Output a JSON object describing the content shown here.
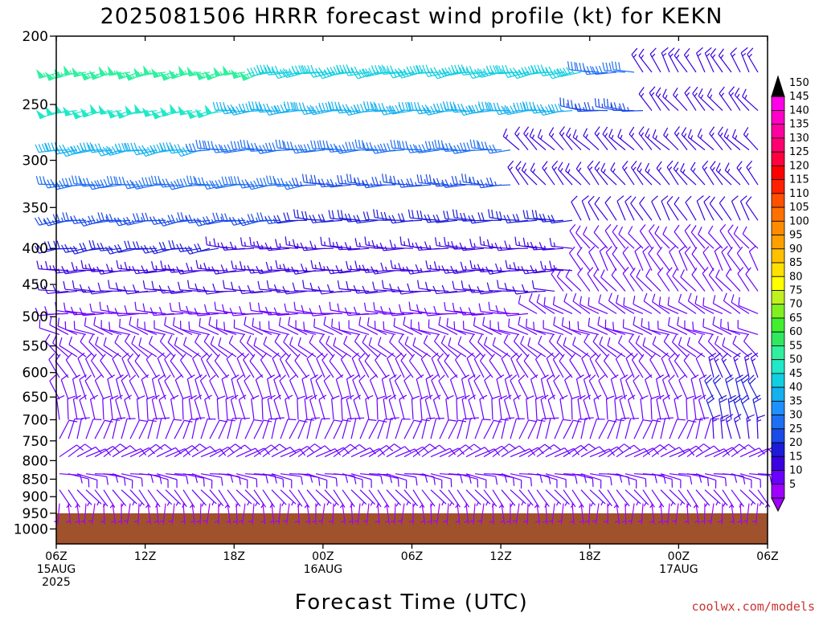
{
  "chart_data": {
    "type": "wind-barb time-height",
    "title": "2025081506 HRRR forecast wind profile (kt) for KEKN",
    "xlabel": "Forecast Time (UTC)",
    "ylabel": "",
    "x_ticks": [
      {
        "hour": 0,
        "lines": [
          "06Z",
          "15AUG",
          "2025"
        ]
      },
      {
        "hour": 6,
        "lines": [
          "12Z"
        ]
      },
      {
        "hour": 12,
        "lines": [
          "18Z"
        ]
      },
      {
        "hour": 18,
        "lines": [
          "00Z",
          "16AUG"
        ]
      },
      {
        "hour": 24,
        "lines": [
          "06Z"
        ]
      },
      {
        "hour": 30,
        "lines": [
          "12Z"
        ]
      },
      {
        "hour": 36,
        "lines": [
          "18Z"
        ]
      },
      {
        "hour": 42,
        "lines": [
          "00Z",
          "17AUG"
        ]
      },
      {
        "hour": 48,
        "lines": [
          "06Z"
        ]
      }
    ],
    "xlim_hours": [
      0,
      48
    ],
    "y_ticks": [
      200,
      250,
      300,
      350,
      400,
      450,
      500,
      550,
      600,
      650,
      700,
      750,
      800,
      850,
      900,
      950,
      1000
    ],
    "ylim_hpa": [
      200,
      1050
    ],
    "y_scale": "log-pressure",
    "ground_level_hpa": 950,
    "ground_color": "#a0522d",
    "colorbar": {
      "values": [
        5,
        10,
        15,
        20,
        25,
        30,
        35,
        40,
        45,
        50,
        55,
        60,
        65,
        70,
        75,
        80,
        85,
        90,
        95,
        100,
        105,
        110,
        115,
        120,
        125,
        130,
        135,
        140,
        145,
        150
      ],
      "colors": [
        "#a000ff",
        "#6a00ff",
        "#3a00e0",
        "#1c1cd8",
        "#1a4be8",
        "#1e6ff2",
        "#1e90ff",
        "#14b0f0",
        "#10cfe0",
        "#20e8c8",
        "#30f0a0",
        "#30e860",
        "#40f030",
        "#80f020",
        "#c0f020",
        "#ffff00",
        "#ffe000",
        "#ffc000",
        "#ffa000",
        "#ff8c00",
        "#ff7000",
        "#ff5000",
        "#ff2000",
        "#ff0000",
        "#ff0040",
        "#ff0070",
        "#ff00a0",
        "#ff00c8",
        "#ff00e8",
        "#000000"
      ]
    },
    "wind_profiles": [
      {
        "level_hpa": 225,
        "segments": [
          {
            "from_hour": 0,
            "to_hour": 14,
            "speed_kt": 55,
            "dir_deg": 255
          },
          {
            "from_hour": 14,
            "to_hour": 36,
            "speed_kt": 45,
            "dir_deg": 260
          },
          {
            "from_hour": 36,
            "to_hour": 39,
            "speed_kt": 30,
            "dir_deg": 270
          },
          {
            "from_hour": 39,
            "to_hour": 48,
            "speed_kt": 15,
            "dir_deg": 330
          }
        ]
      },
      {
        "level_hpa": 255,
        "segments": [
          {
            "from_hour": 0,
            "to_hour": 12,
            "speed_kt": 50,
            "dir_deg": 255
          },
          {
            "from_hour": 12,
            "to_hour": 35,
            "speed_kt": 40,
            "dir_deg": 265
          },
          {
            "from_hour": 35,
            "to_hour": 40,
            "speed_kt": 25,
            "dir_deg": 275
          },
          {
            "from_hour": 40,
            "to_hour": 48,
            "speed_kt": 15,
            "dir_deg": 320
          }
        ]
      },
      {
        "level_hpa": 290,
        "segments": [
          {
            "from_hour": 0,
            "to_hour": 10,
            "speed_kt": 40,
            "dir_deg": 260
          },
          {
            "from_hour": 10,
            "to_hour": 31,
            "speed_kt": 30,
            "dir_deg": 268
          },
          {
            "from_hour": 31,
            "to_hour": 48,
            "speed_kt": 15,
            "dir_deg": 315
          }
        ]
      },
      {
        "level_hpa": 325,
        "segments": [
          {
            "from_hour": 0,
            "to_hour": 17,
            "speed_kt": 30,
            "dir_deg": 265
          },
          {
            "from_hour": 17,
            "to_hour": 31,
            "speed_kt": 25,
            "dir_deg": 270
          },
          {
            "from_hour": 31,
            "to_hour": 48,
            "speed_kt": 15,
            "dir_deg": 320
          }
        ]
      },
      {
        "level_hpa": 365,
        "segments": [
          {
            "from_hour": 0,
            "to_hour": 16,
            "speed_kt": 25,
            "dir_deg": 262
          },
          {
            "from_hour": 16,
            "to_hour": 35,
            "speed_kt": 20,
            "dir_deg": 270
          },
          {
            "from_hour": 35,
            "to_hour": 48,
            "speed_kt": 12,
            "dir_deg": 330
          }
        ]
      },
      {
        "level_hpa": 400,
        "segments": [
          {
            "from_hour": 0,
            "to_hour": 11,
            "speed_kt": 20,
            "dir_deg": 262
          },
          {
            "from_hour": 11,
            "to_hour": 35,
            "speed_kt": 15,
            "dir_deg": 272
          },
          {
            "from_hour": 35,
            "to_hour": 48,
            "speed_kt": 10,
            "dir_deg": 320
          }
        ]
      },
      {
        "level_hpa": 430,
        "segments": [
          {
            "from_hour": 0,
            "to_hour": 35,
            "speed_kt": 15,
            "dir_deg": 268
          },
          {
            "from_hour": 35,
            "to_hour": 48,
            "speed_kt": 10,
            "dir_deg": 330
          }
        ]
      },
      {
        "level_hpa": 460,
        "segments": [
          {
            "from_hour": 0,
            "to_hour": 34,
            "speed_kt": 12,
            "dir_deg": 270
          },
          {
            "from_hour": 34,
            "to_hour": 48,
            "speed_kt": 8,
            "dir_deg": 320
          }
        ]
      },
      {
        "level_hpa": 495,
        "segments": [
          {
            "from_hour": 0,
            "to_hour": 32,
            "speed_kt": 10,
            "dir_deg": 272
          },
          {
            "from_hour": 32,
            "to_hour": 48,
            "speed_kt": 8,
            "dir_deg": 300
          }
        ]
      },
      {
        "level_hpa": 530,
        "segments": [
          {
            "from_hour": 0,
            "to_hour": 48,
            "speed_kt": 8,
            "dir_deg": 290
          }
        ]
      },
      {
        "level_hpa": 570,
        "segments": [
          {
            "from_hour": 0,
            "to_hour": 48,
            "speed_kt": 8,
            "dir_deg": 310
          }
        ]
      },
      {
        "level_hpa": 610,
        "segments": [
          {
            "from_hour": 0,
            "to_hour": 44,
            "speed_kt": 8,
            "dir_deg": 330
          },
          {
            "from_hour": 44,
            "to_hour": 48,
            "speed_kt": 15,
            "dir_deg": 340
          }
        ]
      },
      {
        "level_hpa": 655,
        "segments": [
          {
            "from_hour": 0,
            "to_hour": 44,
            "speed_kt": 8,
            "dir_deg": 340
          },
          {
            "from_hour": 44,
            "to_hour": 48,
            "speed_kt": 20,
            "dir_deg": 340
          }
        ]
      },
      {
        "level_hpa": 700,
        "segments": [
          {
            "from_hour": 0,
            "to_hour": 44,
            "speed_kt": 8,
            "dir_deg": 350
          },
          {
            "from_hour": 44,
            "to_hour": 48,
            "speed_kt": 20,
            "dir_deg": 345
          }
        ]
      },
      {
        "level_hpa": 745,
        "segments": [
          {
            "from_hour": 0,
            "to_hour": 44,
            "speed_kt": 8,
            "dir_deg": 20
          },
          {
            "from_hour": 44,
            "to_hour": 48,
            "speed_kt": 15,
            "dir_deg": 350
          }
        ]
      },
      {
        "level_hpa": 790,
        "segments": [
          {
            "from_hour": 0,
            "to_hour": 48,
            "speed_kt": 8,
            "dir_deg": 60
          }
        ]
      },
      {
        "level_hpa": 835,
        "segments": [
          {
            "from_hour": 0,
            "to_hour": 48,
            "speed_kt": 8,
            "dir_deg": 100
          }
        ]
      },
      {
        "level_hpa": 880,
        "segments": [
          {
            "from_hour": 0,
            "to_hour": 48,
            "speed_kt": 6,
            "dir_deg": 140
          }
        ]
      },
      {
        "level_hpa": 920,
        "segments": [
          {
            "from_hour": 0,
            "to_hour": 48,
            "speed_kt": 5,
            "dir_deg": 180
          }
        ]
      }
    ]
  },
  "credit": "coolwx.com/models"
}
